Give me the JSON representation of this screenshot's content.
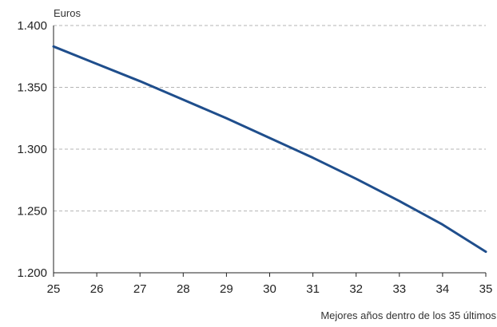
{
  "chart_data": {
    "type": "line",
    "title": "",
    "xlabel": "Mejores años dentro de los 35 últimos",
    "ylabel": "Euros",
    "x": [
      25,
      26,
      27,
      28,
      29,
      30,
      31,
      32,
      33,
      34,
      35
    ],
    "x_tick_labels": [
      "25",
      "26",
      "27",
      "28",
      "29",
      "30",
      "31",
      "32",
      "33",
      "34",
      "35"
    ],
    "y_tick_values": [
      1200,
      1250,
      1300,
      1350,
      1400
    ],
    "y_tick_labels": [
      "1.200",
      "1.250",
      "1.300",
      "1.350",
      "1.400"
    ],
    "ylim": [
      1200,
      1400
    ],
    "xlim": [
      25,
      35
    ],
    "grid": "horizontal-dashed",
    "series": [
      {
        "values": [
          1383,
          1369,
          1355,
          1340,
          1325,
          1309,
          1293,
          1276,
          1258,
          1239,
          1217
        ],
        "color": "#1f4e8c"
      }
    ],
    "colors": {
      "line": "#1f4e8c",
      "grid": "#b5b5b5",
      "axis": "#222222"
    }
  }
}
